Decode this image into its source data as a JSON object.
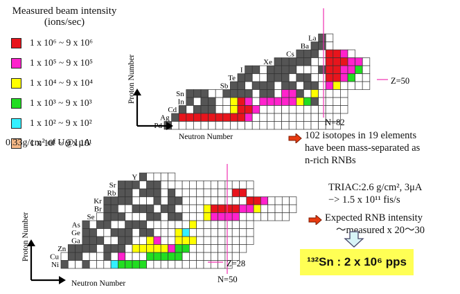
{
  "legend": {
    "title": "Measured beam intensity",
    "unit": "(ions/sec)",
    "items": [
      {
        "color": "#e8141c",
        "label": "1 x 10⁶ ~ 9 x 10⁶"
      },
      {
        "color": "#ff22cc",
        "label": "1 x 10⁵ ~ 9 x 10⁵"
      },
      {
        "color": "#ffff00",
        "label": "1 x 10⁴ ~ 9 x 10⁴"
      },
      {
        "color": "#22dd22",
        "label": "1 x 10³ ~ 9 x 10³"
      },
      {
        "color": "#33f0ff",
        "label": "1 x 10² ~ 9 x 10²"
      },
      {
        "color": "#f4b887",
        "label": "1 x 10¹ ~ 9 x 10¹"
      }
    ],
    "target": "0.33g/cm² of U@1μA"
  },
  "chart1": {
    "y_axis": "Proton Number",
    "x_axis": "Neutron Number",
    "elements": [
      "La",
      "Ba",
      "Cs",
      "Xe",
      "I",
      "Te",
      "Sb",
      "Sn",
      "In",
      "Cd",
      "Ag",
      "Pd"
    ],
    "marker_n": "N=82",
    "marker_z": "Z=50"
  },
  "chart2": {
    "y_axis": "Proton Number",
    "x_axis": "Neutron Number",
    "elements": [
      "Y",
      "Sr",
      "Rb",
      "Kr",
      "Br",
      "Se",
      "As",
      "Ge",
      "Ga",
      "Zn",
      "Cu",
      "Ni"
    ],
    "marker_n": "N=50",
    "marker_z": "Z=28"
  },
  "notes": {
    "isotopes": [
      "102 isotopes in 19 elements",
      "have been mass-separated as",
      "n-rich RNBs"
    ],
    "triac": [
      "TRIAC:2.6 g/cm², 3μA",
      "−> 1.5 x 10¹¹ fis/s"
    ],
    "expected": [
      "Expected RNB intensity",
      "～measured x 20～30"
    ],
    "result": "¹³²Sn : 2 x 10⁶ pps"
  }
}
